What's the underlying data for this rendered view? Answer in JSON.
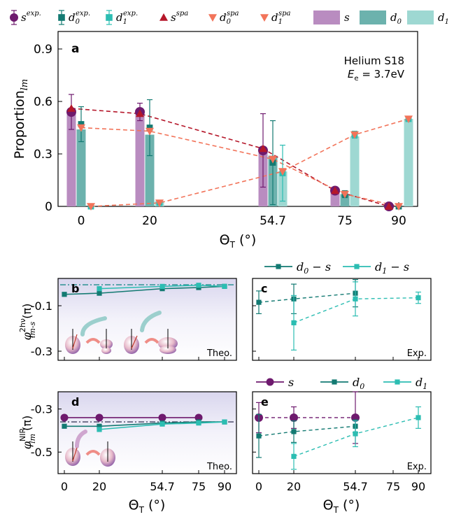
{
  "colors": {
    "s_dark": "#6e1a6e",
    "d0_dark": "#137a72",
    "d1_dark": "#2cbdb2",
    "s_spa": "#b5172a",
    "d_spa": "#f2745a",
    "s_bar": "#b98cc0",
    "d0_bar": "#6cb2ad",
    "d1_bar": "#9ed8d2",
    "theo_bg": "#e8e6f3"
  },
  "legend_top": [
    {
      "sym": "s",
      "sup": "exp."
    },
    {
      "sym": "d",
      "sub": "0",
      "sup": "exp."
    },
    {
      "sym": "d",
      "sub": "1",
      "sup": "exp."
    },
    {
      "sym": "s",
      "sup": "spa"
    },
    {
      "sym": "d",
      "sub": "0",
      "sup": "spa"
    },
    {
      "sym": "d",
      "sub": "1",
      "sup": "spa"
    },
    {
      "sym": "s"
    },
    {
      "sym": "d",
      "sub": "0"
    },
    {
      "sym": "d",
      "sub": "1"
    }
  ],
  "panel_a": {
    "letter": "a",
    "note_line1": "Helium S18",
    "note_line2_pre": "E",
    "note_line2_sub": "e",
    "note_line2_post": " = 3.7eV",
    "ylabel": "Proportion",
    "ylabel_sub": "lm",
    "yticks": [
      "0",
      "0.3",
      "0.6",
      "0.9"
    ],
    "xticks": [
      "0",
      "20",
      "54.7",
      "75",
      "90"
    ],
    "xlabel": "Θ",
    "xlabel_sub": "T",
    "xlabel_unit": " (°)"
  },
  "panel_b": {
    "letter": "b",
    "tag": "Theo.",
    "yticks": [
      "-0.1",
      "-0.3"
    ],
    "ylabel_sup": "2hν",
    "ylabel_sub": "lm-s",
    "ylabel_unit": "(π)"
  },
  "panel_c": {
    "letter": "c",
    "tag": "Exp.",
    "legend": [
      {
        "label": "d",
        "sub": "0",
        "rest": " − s"
      },
      {
        "label": "d",
        "sub": "1",
        "rest": " − s"
      }
    ]
  },
  "panel_d": {
    "letter": "d",
    "tag": "Theo.",
    "yticks": [
      "-0.3",
      "-0.5"
    ],
    "ylabel_sup": "NIR",
    "ylabel_sub": "lm",
    "ylabel_unit": "(π)",
    "xticks": [
      "0",
      "20",
      "54.7",
      "75",
      "90"
    ]
  },
  "panel_e": {
    "letter": "e",
    "tag": "Exp.",
    "legend": [
      {
        "label": "s"
      },
      {
        "label": "d",
        "sub": "0"
      },
      {
        "label": "d",
        "sub": "1"
      }
    ],
    "xticks": [
      "0",
      "20",
      "54.7",
      "75",
      "90"
    ]
  },
  "phi_symbol": "φ",
  "chart_data": [
    {
      "type": "bar",
      "panel": "a",
      "categories": [
        "0",
        "20",
        "54.7",
        "75",
        "90"
      ],
      "ylim": [
        0,
        1.0
      ],
      "title": "",
      "xlabel": "Θ_T (°)",
      "ylabel": "Proportion_lm",
      "legend_position": "top",
      "series": [
        {
          "name": "s",
          "kind": "bar",
          "values": [
            0.55,
            0.55,
            0.31,
            0.09,
            0.0
          ]
        },
        {
          "name": "d0",
          "kind": "bar",
          "values": [
            0.44,
            0.41,
            0.29,
            0.07,
            0.0
          ]
        },
        {
          "name": "d1",
          "kind": "bar",
          "values": [
            0.0,
            0.03,
            0.2,
            0.4,
            0.5
          ]
        },
        {
          "name": "s exp.",
          "kind": "marker",
          "values": [
            0.54,
            0.54,
            0.32,
            0.09,
            0.0
          ],
          "err": [
            0.1,
            0.05,
            0.21,
            0.01,
            0.0
          ]
        },
        {
          "name": "d0 exp.",
          "kind": "marker",
          "values": [
            0.47,
            0.45,
            0.25,
            0.07,
            0.0
          ],
          "err": [
            0.1,
            0.16,
            0.24,
            0.02,
            0.0
          ]
        },
        {
          "name": "d1 exp.",
          "kind": "marker",
          "values": [
            0.0,
            0.02,
            0.19,
            0.41,
            0.5
          ],
          "err": [
            0.01,
            0.01,
            0.16,
            0.02,
            0.01
          ]
        },
        {
          "name": "s spa",
          "kind": "line",
          "values": [
            0.56,
            0.53,
            0.33,
            0.09,
            0.0
          ]
        },
        {
          "name": "d0 spa",
          "kind": "line",
          "values": [
            0.45,
            0.43,
            0.27,
            0.07,
            0.0
          ]
        },
        {
          "name": "d1 spa",
          "kind": "line",
          "values": [
            0.0,
            0.02,
            0.2,
            0.41,
            0.5
          ]
        }
      ]
    },
    {
      "type": "line",
      "panel": "b",
      "x": [
        0,
        20,
        54.7,
        75,
        90
      ],
      "ylim": [
        -0.34,
        0.02
      ],
      "series": [
        {
          "name": "d0 − s",
          "values": [
            -0.05,
            -0.045,
            -0.025,
            -0.02,
            -0.015
          ]
        },
        {
          "name": "d1 − s",
          "values": [
            null,
            -0.025,
            -0.015,
            -0.01,
            -0.015
          ]
        },
        {
          "name": "reference",
          "values": [
            -0.008,
            -0.008,
            -0.008,
            -0.008,
            -0.008
          ]
        }
      ]
    },
    {
      "type": "line",
      "panel": "c",
      "x": [
        0,
        20,
        54.7,
        90
      ],
      "ylim": [
        -0.34,
        0.02
      ],
      "series": [
        {
          "name": "d0 − s",
          "values": [
            -0.085,
            -0.07,
            -0.045,
            null
          ],
          "err": [
            0.05,
            0.065,
            0.06,
            null
          ]
        },
        {
          "name": "d1 − s",
          "values": [
            null,
            -0.175,
            -0.07,
            -0.065
          ],
          "err": [
            null,
            0.12,
            0.075,
            0.025
          ]
        }
      ]
    },
    {
      "type": "line",
      "panel": "d",
      "x": [
        0,
        20,
        54.7,
        75,
        90
      ],
      "ylim": [
        -0.6,
        -0.22
      ],
      "series": [
        {
          "name": "s",
          "values": [
            -0.34,
            -0.34,
            -0.34,
            -0.34,
            null
          ]
        },
        {
          "name": "d0",
          "values": [
            -0.38,
            -0.38,
            -0.365,
            -0.36,
            -0.36
          ]
        },
        {
          "name": "d1",
          "values": [
            null,
            -0.395,
            -0.37,
            -0.365,
            -0.36
          ]
        },
        {
          "name": "reference",
          "values": [
            -0.36,
            -0.36,
            -0.36,
            -0.36,
            -0.36
          ]
        }
      ]
    },
    {
      "type": "line",
      "panel": "e",
      "x": [
        0,
        20,
        54.7,
        90
      ],
      "ylim": [
        -0.6,
        -0.22
      ],
      "series": [
        {
          "name": "s",
          "values": [
            -0.34,
            -0.34,
            -0.34,
            null
          ],
          "err": [
            0.07,
            0.05,
            0.12,
            null
          ]
        },
        {
          "name": "d0",
          "values": [
            -0.425,
            -0.405,
            -0.38,
            null
          ],
          "err": [
            0.1,
            0.05,
            0.03,
            null
          ]
        },
        {
          "name": "d1",
          "values": [
            null,
            -0.52,
            -0.415,
            -0.34
          ],
          "err": [
            null,
            0.06,
            0.06,
            0.05
          ]
        }
      ]
    }
  ]
}
